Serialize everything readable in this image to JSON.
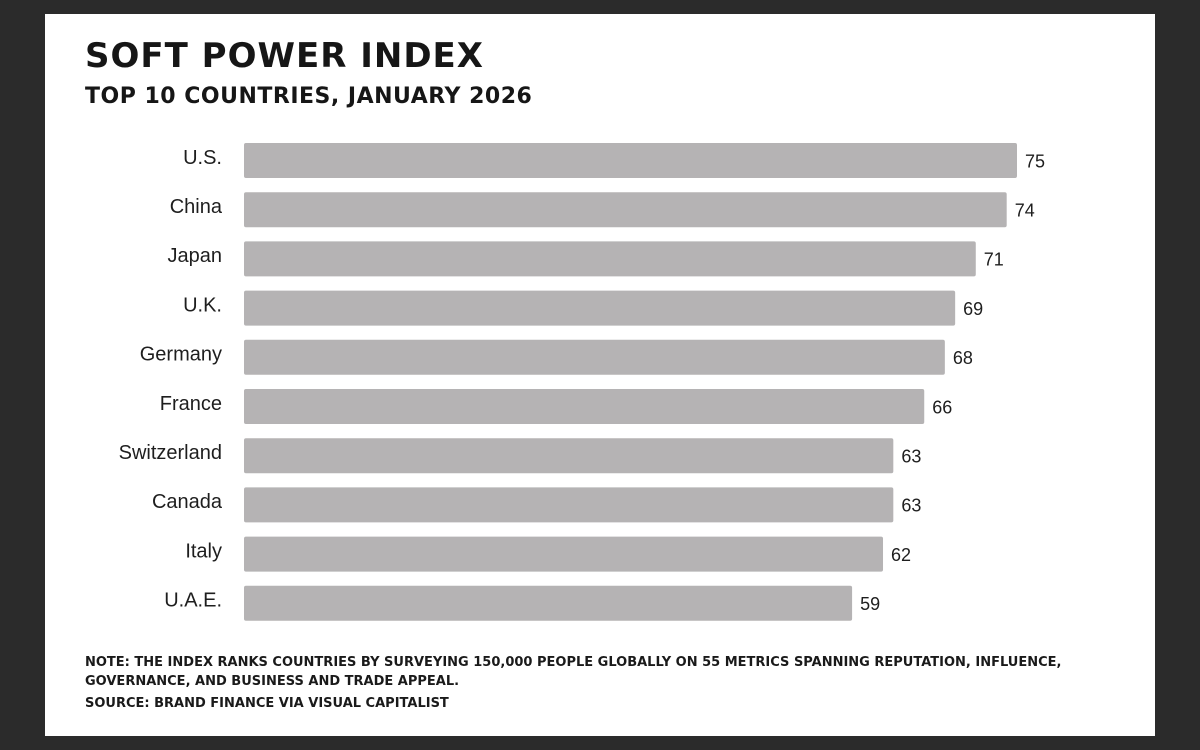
{
  "chart_data": {
    "type": "bar",
    "orientation": "horizontal",
    "title": "SOFT POWER INDEX",
    "subtitle": "TOP 10 COUNTRIES, JANUARY 2026",
    "categories": [
      "U.S.",
      "China",
      "Japan",
      "U.K.",
      "Germany",
      "France",
      "Switzerland",
      "Canada",
      "Italy",
      "U.A.E."
    ],
    "values": [
      75,
      74,
      71,
      69,
      68,
      66,
      63,
      63,
      62,
      59
    ],
    "xlim": [
      0,
      75
    ],
    "grid": false,
    "bar_color": "#b5b3b4",
    "data_labels": true
  },
  "footer": {
    "note": "NOTE: THE INDEX RANKS COUNTRIES BY SURVEYING 150,000 PEOPLE GLOBALLY ON 55 METRICS SPANNING REPUTATION, INFLUENCE, GOVERNANCE, AND BUSINESS AND TRADE APPEAL.",
    "source": "SOURCE: BRAND FINANCE VIA VISUAL CAPITALIST"
  }
}
